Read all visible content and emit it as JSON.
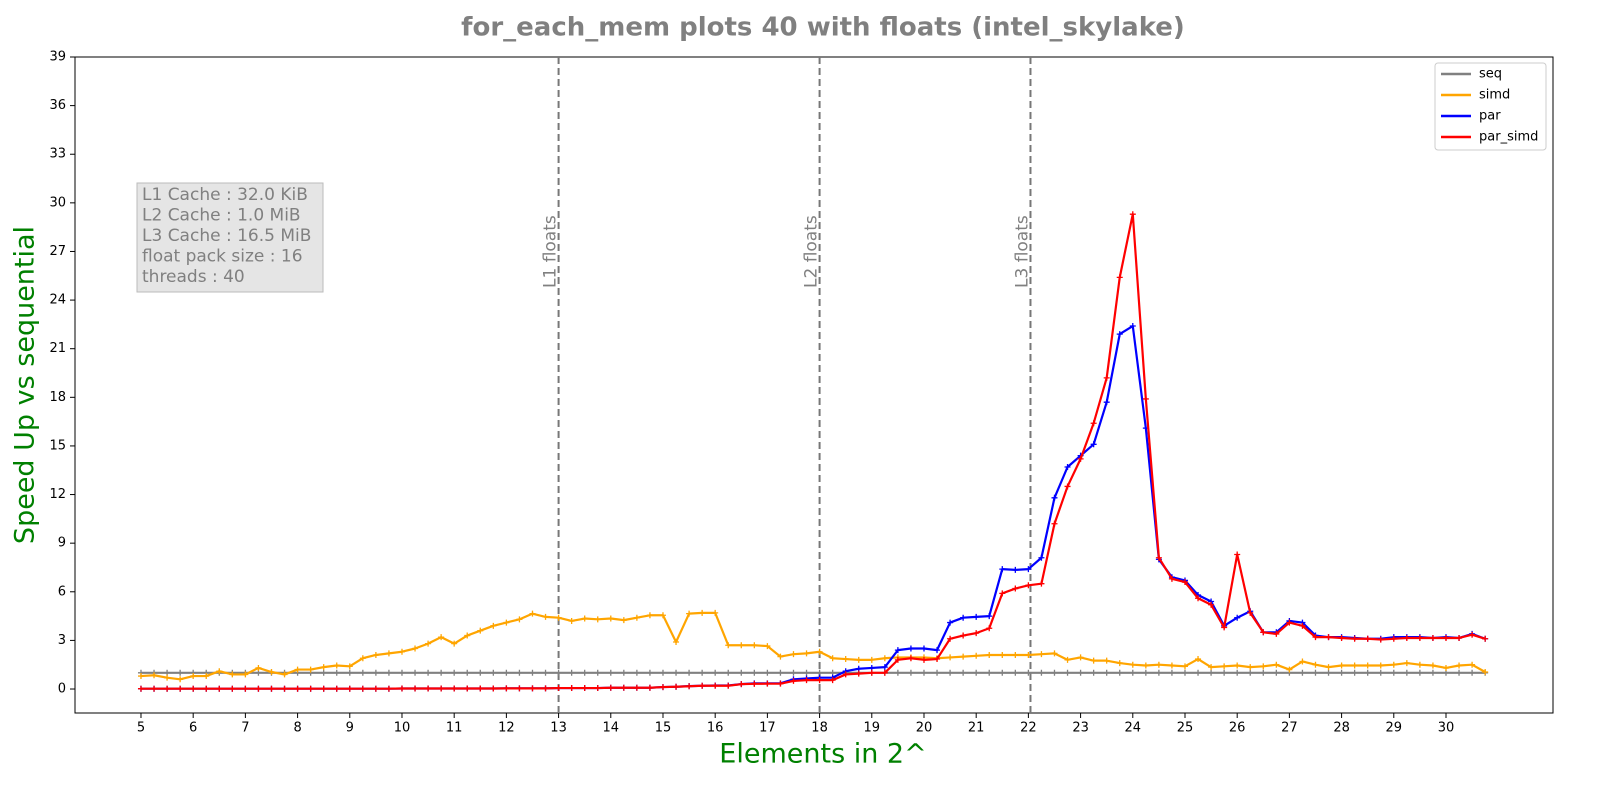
{
  "chart_data": {
    "type": "line",
    "title": "for_each_mem plots 40 with floats  (intel_skylake)",
    "x_label": "Elements in 2^",
    "y_label": "Speed Up vs sequential",
    "annotation": [
      "L1 Cache : 32.0 KiB",
      "L2 Cache : 1.0 MiB",
      "L3 Cache : 16.5 MiB",
      "float pack size : 16",
      "threads : 40"
    ],
    "vlines": [
      {
        "x": 13,
        "label": "L1 floats"
      },
      {
        "x": 18,
        "label": "L2 floats"
      },
      {
        "x": 22.04,
        "label": "L3 floats"
      }
    ],
    "legend": "upper right",
    "xlim": [
      3.736,
      32.05
    ],
    "ylim": [
      -1.48,
      39
    ],
    "xticks": [
      5,
      6,
      7,
      8,
      9,
      10,
      11,
      12,
      13,
      14,
      15,
      16,
      17,
      18,
      19,
      20,
      21,
      22,
      23,
      24,
      25,
      26,
      27,
      28,
      29,
      30
    ],
    "yticks": [
      0,
      3,
      6,
      9,
      12,
      15,
      18,
      21,
      24,
      27,
      30,
      33,
      36,
      39
    ],
    "x": [
      5,
      5.25,
      5.5,
      5.75,
      6,
      6.25,
      6.5,
      6.75,
      7,
      7.25,
      7.5,
      7.75,
      8,
      8.25,
      8.5,
      8.75,
      9,
      9.25,
      9.5,
      9.75,
      10,
      10.25,
      10.5,
      10.75,
      11,
      11.25,
      11.5,
      11.75,
      12,
      12.25,
      12.5,
      12.75,
      13,
      13.25,
      13.5,
      13.75,
      14,
      14.25,
      14.5,
      14.75,
      15,
      15.25,
      15.5,
      15.75,
      16,
      16.25,
      16.5,
      16.75,
      17,
      17.25,
      17.5,
      17.75,
      18,
      18.25,
      18.5,
      18.75,
      19,
      19.25,
      19.5,
      19.75,
      20,
      20.25,
      20.5,
      20.75,
      21,
      21.25,
      21.5,
      21.75,
      22,
      22.25,
      22.5,
      22.75,
      23,
      23.25,
      23.5,
      23.75,
      24,
      24.25,
      24.5,
      24.75,
      25,
      25.25,
      25.5,
      25.75,
      26,
      26.25,
      26.5,
      26.75,
      27,
      27.25,
      27.5,
      27.75,
      28,
      28.25,
      28.5,
      28.75,
      29,
      29.25,
      29.5,
      29.75,
      30,
      30.25,
      30.5,
      30.75
    ],
    "series": [
      {
        "name": "seq",
        "color": "#808080",
        "values": [
          1,
          1,
          1,
          1,
          1,
          1,
          1,
          1,
          1,
          1,
          1,
          1,
          1,
          1,
          1,
          1,
          1,
          1,
          1,
          1,
          1,
          1,
          1,
          1,
          1,
          1,
          1,
          1,
          1,
          1,
          1,
          1,
          1,
          1,
          1,
          1,
          1,
          1,
          1,
          1,
          1,
          1,
          1,
          1,
          1,
          1,
          1,
          1,
          1,
          1,
          1,
          1,
          1,
          1,
          1,
          1,
          1,
          1,
          1,
          1,
          1,
          1,
          1,
          1,
          1,
          1,
          1,
          1,
          1,
          1,
          1,
          1,
          1,
          1,
          1,
          1,
          1,
          1,
          1,
          1,
          1,
          1,
          1,
          1,
          1,
          1,
          1,
          1,
          1,
          1,
          1,
          1,
          1,
          1,
          1,
          1,
          1,
          1,
          1,
          1,
          1,
          1,
          1,
          1
        ]
      },
      {
        "name": "simd",
        "color": "#ffa500",
        "values": [
          0.8,
          0.85,
          0.7,
          0.6,
          0.8,
          0.8,
          1.1,
          0.9,
          0.9,
          1.3,
          1.05,
          0.9,
          1.2,
          1.2,
          1.35,
          1.45,
          1.4,
          1.9,
          2.1,
          2.2,
          2.3,
          2.5,
          2.8,
          3.2,
          2.8,
          3.3,
          3.6,
          3.9,
          4.1,
          4.3,
          4.65,
          4.45,
          4.4,
          4.2,
          4.35,
          4.3,
          4.35,
          4.25,
          4.4,
          4.55,
          4.55,
          2.9,
          4.65,
          4.7,
          4.7,
          2.7,
          2.7,
          2.7,
          2.65,
          2.0,
          2.15,
          2.2,
          2.3,
          1.9,
          1.85,
          1.8,
          1.8,
          1.9,
          1.95,
          1.95,
          1.95,
          1.9,
          1.95,
          2.0,
          2.05,
          2.1,
          2.1,
          2.1,
          2.1,
          2.15,
          2.2,
          1.8,
          1.95,
          1.75,
          1.75,
          1.6,
          1.5,
          1.45,
          1.5,
          1.45,
          1.4,
          1.85,
          1.35,
          1.4,
          1.45,
          1.35,
          1.4,
          1.5,
          1.2,
          1.7,
          1.5,
          1.35,
          1.45,
          1.45,
          1.45,
          1.45,
          1.5,
          1.6,
          1.5,
          1.45,
          1.3,
          1.45,
          1.5,
          1.05
        ]
      },
      {
        "name": "par",
        "color": "#0000ff",
        "values": [
          0.02,
          0.02,
          0.02,
          0.02,
          0.02,
          0.02,
          0.02,
          0.02,
          0.02,
          0.02,
          0.02,
          0.02,
          0.02,
          0.02,
          0.02,
          0.02,
          0.02,
          0.02,
          0.02,
          0.02,
          0.03,
          0.03,
          0.03,
          0.03,
          0.03,
          0.03,
          0.03,
          0.03,
          0.04,
          0.04,
          0.04,
          0.04,
          0.06,
          0.06,
          0.06,
          0.06,
          0.08,
          0.08,
          0.08,
          0.08,
          0.12,
          0.14,
          0.18,
          0.2,
          0.22,
          0.22,
          0.3,
          0.35,
          0.35,
          0.35,
          0.6,
          0.65,
          0.7,
          0.7,
          1.1,
          1.25,
          1.3,
          1.35,
          2.4,
          2.5,
          2.5,
          2.4,
          4.1,
          4.4,
          4.45,
          4.5,
          7.4,
          7.35,
          7.4,
          8.1,
          11.8,
          13.7,
          14.4,
          15.1,
          17.7,
          21.9,
          22.4,
          16.1,
          8.0,
          6.9,
          6.7,
          5.8,
          5.4,
          3.9,
          4.4,
          4.8,
          3.5,
          3.5,
          4.2,
          4.1,
          3.3,
          3.2,
          3.2,
          3.15,
          3.1,
          3.1,
          3.2,
          3.2,
          3.2,
          3.15,
          3.2,
          3.15,
          3.4,
          3.1
        ]
      },
      {
        "name": "par_simd",
        "color": "#ff0000",
        "values": [
          0.02,
          0.02,
          0.02,
          0.02,
          0.02,
          0.02,
          0.02,
          0.02,
          0.02,
          0.02,
          0.02,
          0.02,
          0.02,
          0.02,
          0.02,
          0.02,
          0.02,
          0.02,
          0.02,
          0.02,
          0.03,
          0.03,
          0.03,
          0.03,
          0.03,
          0.03,
          0.03,
          0.03,
          0.04,
          0.04,
          0.04,
          0.04,
          0.06,
          0.06,
          0.06,
          0.06,
          0.08,
          0.08,
          0.08,
          0.08,
          0.12,
          0.14,
          0.17,
          0.2,
          0.2,
          0.2,
          0.3,
          0.32,
          0.33,
          0.33,
          0.5,
          0.55,
          0.55,
          0.55,
          0.9,
          0.95,
          1.0,
          1.0,
          1.8,
          1.9,
          1.8,
          1.85,
          3.1,
          3.3,
          3.45,
          3.75,
          5.9,
          6.2,
          6.4,
          6.5,
          10.2,
          12.5,
          14.2,
          16.4,
          19.2,
          25.4,
          29.3,
          17.9,
          8.1,
          6.8,
          6.6,
          5.6,
          5.2,
          3.8,
          8.3,
          4.7,
          3.5,
          3.4,
          4.1,
          3.9,
          3.2,
          3.2,
          3.15,
          3.1,
          3.1,
          3.05,
          3.1,
          3.15,
          3.15,
          3.15,
          3.15,
          3.15,
          3.35,
          3.1
        ]
      }
    ]
  }
}
